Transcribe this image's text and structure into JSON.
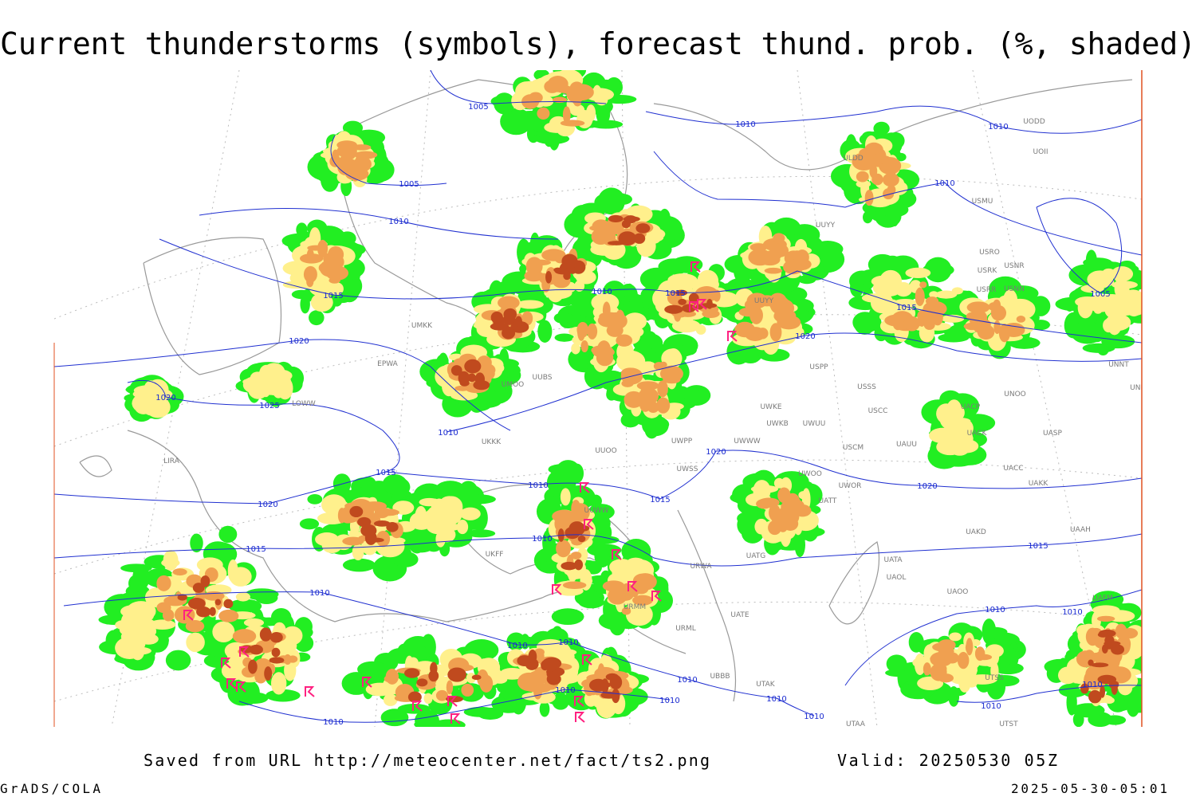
{
  "header": {
    "title": "Current thunderstorms (symbols), forecast thund. prob. (%, shaded)"
  },
  "map": {
    "isobar_labels": [
      "1005",
      "1010",
      "1010",
      "1005",
      "1010",
      "1010",
      "1015",
      "1010",
      "1015",
      "1015",
      "1005",
      "1020",
      "1020",
      "1020",
      "1025",
      "1010",
      "1020",
      "1015",
      "1010",
      "1020",
      "1020",
      "1015",
      "1010",
      "1015",
      "1015",
      "1010",
      "1010",
      "1010",
      "1010",
      "1010",
      "1010",
      "1010",
      "1010",
      "1010",
      "1010",
      "1010",
      "1010",
      "1010"
    ],
    "stations": [
      "UODD",
      "UOII",
      "ULDD",
      "USMU",
      "UUYY",
      "USRO",
      "USRK",
      "USNR",
      "USRR",
      "USNN",
      "UUYY",
      "UMKK",
      "EPWA",
      "USPP",
      "USSS",
      "UNOO",
      "UNBB",
      "UNNT",
      "UWKE",
      "USCC",
      "UWKB",
      "UWUU",
      "UACP",
      "UACK",
      "UASP",
      "LOWW",
      "USCM",
      "UAUU",
      "UWWW",
      "UWPP",
      "UWSS",
      "UWOO",
      "UWOR",
      "UACC",
      "UAKK",
      "UATT",
      "UAKD",
      "UAAH",
      "UATG",
      "UATA",
      "UAOL",
      "UAOO",
      "URWA",
      "URML",
      "UATE",
      "UTAK",
      "UTAA",
      "UTST",
      "UTSS",
      "UAFM",
      "UUWW",
      "UUOO",
      "UMOO",
      "UUBS",
      "UKKK",
      "UKFF",
      "LIRA",
      "URMM",
      "UBBB"
    ]
  },
  "footer": {
    "source": "Saved from URL http://meteocenter.net/fact/ts2.png",
    "valid": "Valid: 20250530 05Z",
    "software": "GrADS/COLA",
    "timestamp": "2025-05-30-05:01"
  }
}
